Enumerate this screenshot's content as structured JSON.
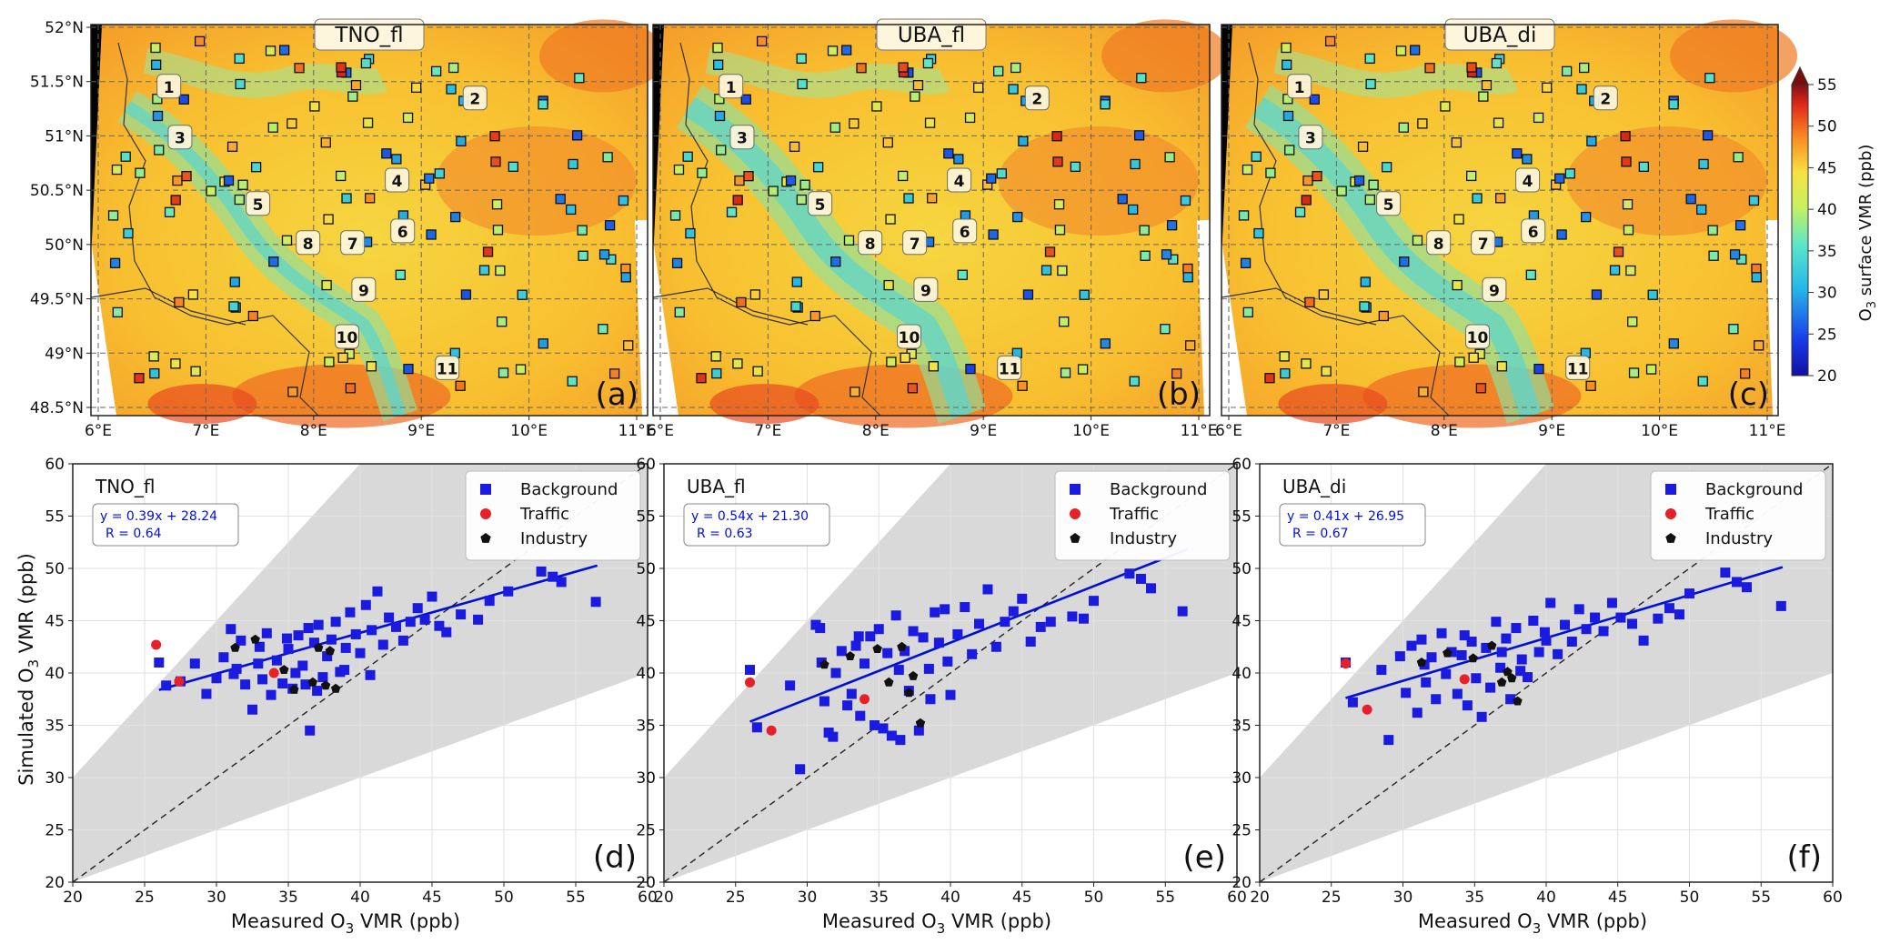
{
  "figure": {
    "map_panels": [
      {
        "title": "TNO_fl",
        "tag": "(a)"
      },
      {
        "title": "UBA_fl",
        "tag": "(b)"
      },
      {
        "title": "UBA_di",
        "tag": "(c)"
      }
    ],
    "site_numbers": [
      "1",
      "2",
      "3",
      "4",
      "5",
      "6",
      "7",
      "8",
      "9",
      "10",
      "11"
    ],
    "colorbar": {
      "label_parts": [
        "O",
        "3",
        " surface VMR (ppb)"
      ],
      "ticks": [
        "20",
        "25",
        "30",
        "35",
        "40",
        "45",
        "50",
        "55"
      ],
      "min": 20,
      "max": 55
    },
    "lon_ticks": [
      "6°E",
      "7°E",
      "8°E",
      "9°E",
      "10°E",
      "11°E"
    ],
    "lat_ticks": [
      "52°N",
      "51.5°N",
      "51°N",
      "50.5°N",
      "50°N",
      "49.5°N",
      "49°N",
      "48.5°N"
    ],
    "scatter_ylabel_parts": [
      "Simulated O",
      "3",
      " VMR (ppb)"
    ],
    "scatter_xlabel_parts": [
      "Measured O",
      "3",
      " VMR (ppb)"
    ],
    "colors": {
      "background": "#1a1ae0",
      "traffic": "#e8202a",
      "industry": "#111111",
      "fit": "#0010d8",
      "shade": "#d9d9d9"
    }
  },
  "chart_data": [
    {
      "type": "scatter",
      "title": "TNO_fl",
      "tag": "(d)",
      "xlim": [
        20,
        60
      ],
      "ylim": [
        20,
        60
      ],
      "xticks": [
        "20",
        "25",
        "30",
        "35",
        "40",
        "45",
        "50",
        "55",
        "60"
      ],
      "yticks": [
        "20",
        "25",
        "30",
        "35",
        "40",
        "45",
        "50",
        "55",
        "60"
      ],
      "xlabel": "Measured O3 VMR (ppb)",
      "ylabel": "Simulated O3 VMR (ppb)",
      "fit_text": [
        "y = 0.39x + 28.24",
        "R = 0.64"
      ],
      "fit": {
        "slope": 0.39,
        "intercept": 28.24,
        "x_range": [
          26,
          56.5
        ]
      },
      "legend": [
        "Background",
        "Traffic",
        "Industry"
      ],
      "series": [
        {
          "name": "Background",
          "points": [
            [
              26.0,
              41.0
            ],
            [
              26.5,
              38.8
            ],
            [
              27.5,
              39.2
            ],
            [
              28.5,
              40.9
            ],
            [
              29.3,
              38.0
            ],
            [
              30.0,
              39.5
            ],
            [
              30.5,
              41.5
            ],
            [
              31.0,
              44.2
            ],
            [
              31.2,
              39.9
            ],
            [
              31.7,
              43.1
            ],
            [
              32.0,
              38.9
            ],
            [
              32.5,
              36.5
            ],
            [
              33.0,
              42.5
            ],
            [
              33.2,
              39.4
            ],
            [
              33.5,
              43.8
            ],
            [
              33.8,
              37.9
            ],
            [
              34.2,
              41.2
            ],
            [
              34.6,
              39.0
            ],
            [
              35.0,
              42.3
            ],
            [
              35.3,
              38.5
            ],
            [
              35.7,
              43.6
            ],
            [
              36.0,
              40.7
            ],
            [
              36.2,
              38.9
            ],
            [
              36.5,
              34.5
            ],
            [
              36.8,
              42.9
            ],
            [
              37.1,
              44.6
            ],
            [
              37.4,
              39.6
            ],
            [
              37.7,
              41.6
            ],
            [
              38.0,
              43.2
            ],
            [
              38.3,
              44.9
            ],
            [
              38.6,
              40.1
            ],
            [
              39.0,
              42.4
            ],
            [
              39.3,
              45.8
            ],
            [
              39.7,
              43.7
            ],
            [
              40.0,
              41.9
            ],
            [
              40.4,
              46.5
            ],
            [
              40.8,
              44.1
            ],
            [
              41.2,
              47.8
            ],
            [
              41.6,
              42.7
            ],
            [
              42.0,
              45.3
            ],
            [
              42.5,
              44.4
            ],
            [
              43.0,
              43.1
            ],
            [
              43.5,
              44.9
            ],
            [
              44.0,
              46.2
            ],
            [
              44.5,
              45.1
            ],
            [
              45.0,
              47.3
            ],
            [
              45.5,
              44.5
            ],
            [
              46.0,
              43.9
            ],
            [
              47.0,
              45.6
            ],
            [
              48.2,
              45.1
            ],
            [
              49.0,
              46.9
            ],
            [
              50.3,
              47.8
            ],
            [
              52.6,
              49.7
            ],
            [
              53.4,
              49.2
            ],
            [
              54.0,
              48.7
            ],
            [
              56.4,
              46.8
            ],
            [
              31.4,
              40.4
            ],
            [
              34.9,
              43.3
            ],
            [
              37.0,
              38.3
            ],
            [
              38.9,
              40.3
            ],
            [
              40.7,
              39.8
            ],
            [
              32.9,
              40.9
            ],
            [
              36.4,
              44.3
            ],
            [
              35.5,
              40.0
            ]
          ]
        },
        {
          "name": "Traffic",
          "points": [
            [
              25.8,
              42.7
            ],
            [
              27.4,
              39.2
            ],
            [
              34.0,
              40.0
            ]
          ]
        },
        {
          "name": "Industry",
          "points": [
            [
              31.3,
              42.4
            ],
            [
              32.7,
              43.2
            ],
            [
              34.7,
              40.3
            ],
            [
              35.4,
              38.4
            ],
            [
              36.7,
              39.1
            ],
            [
              37.1,
              42.4
            ],
            [
              37.6,
              38.8
            ],
            [
              37.9,
              42.1
            ],
            [
              38.3,
              38.5
            ]
          ]
        }
      ]
    },
    {
      "type": "scatter",
      "title": "UBA_fl",
      "tag": "(e)",
      "xlim": [
        20,
        60
      ],
      "ylim": [
        20,
        60
      ],
      "xticks": [
        "20",
        "25",
        "30",
        "35",
        "40",
        "45",
        "50",
        "55",
        "60"
      ],
      "yticks": [
        "20",
        "25",
        "30",
        "35",
        "40",
        "45",
        "50",
        "55",
        "60"
      ],
      "xlabel": "Measured O3 VMR (ppb)",
      "ylabel": "",
      "fit_text": [
        "y = 0.54x + 21.30",
        "R = 0.63"
      ],
      "fit": {
        "slope": 0.54,
        "intercept": 21.3,
        "x_range": [
          26,
          56.5
        ]
      },
      "legend": [
        "Background",
        "Traffic",
        "Industry"
      ],
      "series": [
        {
          "name": "Background",
          "points": [
            [
              26.0,
              40.3
            ],
            [
              26.5,
              34.8
            ],
            [
              28.8,
              38.8
            ],
            [
              29.5,
              30.8
            ],
            [
              30.6,
              44.6
            ],
            [
              30.9,
              44.3
            ],
            [
              31.2,
              37.3
            ],
            [
              31.5,
              34.3
            ],
            [
              31.8,
              33.9
            ],
            [
              32.0,
              40.0
            ],
            [
              32.4,
              42.1
            ],
            [
              32.8,
              36.9
            ],
            [
              33.1,
              38.0
            ],
            [
              33.4,
              42.6
            ],
            [
              33.7,
              35.9
            ],
            [
              34.0,
              40.9
            ],
            [
              34.4,
              43.5
            ],
            [
              34.7,
              35.0
            ],
            [
              35.0,
              44.2
            ],
            [
              35.3,
              34.7
            ],
            [
              35.6,
              41.9
            ],
            [
              35.9,
              34.0
            ],
            [
              36.2,
              45.5
            ],
            [
              36.5,
              33.6
            ],
            [
              36.8,
              42.1
            ],
            [
              37.1,
              38.3
            ],
            [
              37.4,
              44.0
            ],
            [
              37.8,
              34.5
            ],
            [
              38.1,
              43.4
            ],
            [
              38.5,
              40.4
            ],
            [
              38.9,
              45.8
            ],
            [
              39.2,
              42.9
            ],
            [
              39.6,
              46.1
            ],
            [
              40.0,
              37.9
            ],
            [
              40.5,
              43.7
            ],
            [
              41.0,
              46.3
            ],
            [
              41.5,
              41.8
            ],
            [
              42.0,
              44.7
            ],
            [
              42.6,
              48.0
            ],
            [
              43.2,
              42.5
            ],
            [
              43.8,
              44.9
            ],
            [
              44.4,
              45.9
            ],
            [
              45.0,
              47.1
            ],
            [
              45.6,
              43.0
            ],
            [
              46.3,
              44.4
            ],
            [
              47.0,
              44.9
            ],
            [
              48.5,
              45.4
            ],
            [
              49.3,
              45.2
            ],
            [
              50.0,
              46.9
            ],
            [
              52.5,
              49.5
            ],
            [
              53.3,
              49.0
            ],
            [
              54.0,
              48.1
            ],
            [
              56.2,
              45.9
            ],
            [
              31.0,
              41.0
            ],
            [
              33.6,
              43.5
            ],
            [
              36.4,
              40.3
            ],
            [
              38.6,
              37.5
            ],
            [
              39.8,
              41.1
            ]
          ]
        },
        {
          "name": "Traffic",
          "points": [
            [
              26.0,
              39.1
            ],
            [
              27.5,
              34.5
            ],
            [
              34.0,
              37.5
            ]
          ]
        },
        {
          "name": "Industry",
          "points": [
            [
              31.2,
              40.8
            ],
            [
              33.0,
              41.6
            ],
            [
              34.9,
              42.3
            ],
            [
              35.7,
              39.1
            ],
            [
              36.6,
              42.5
            ],
            [
              37.1,
              38.1
            ],
            [
              37.4,
              39.7
            ],
            [
              37.9,
              35.2
            ]
          ]
        }
      ]
    },
    {
      "type": "scatter",
      "title": "UBA_di",
      "tag": "(f)",
      "xlim": [
        20,
        60
      ],
      "ylim": [
        20,
        60
      ],
      "xticks": [
        "20",
        "25",
        "30",
        "35",
        "40",
        "45",
        "50",
        "55",
        "60"
      ],
      "yticks": [
        "20",
        "25",
        "30",
        "35",
        "40",
        "45",
        "50",
        "55",
        "60"
      ],
      "xlabel": "Measured O3 VMR (ppb)",
      "ylabel": "",
      "fit_text": [
        "y = 0.41x + 26.95",
        "R = 0.67"
      ],
      "fit": {
        "slope": 0.41,
        "intercept": 26.95,
        "x_range": [
          26,
          56.5
        ]
      },
      "legend": [
        "Background",
        "Traffic",
        "Industry"
      ],
      "series": [
        {
          "name": "Background",
          "points": [
            [
              26.0,
              41.0
            ],
            [
              26.5,
              37.2
            ],
            [
              28.5,
              40.3
            ],
            [
              29.0,
              33.6
            ],
            [
              29.8,
              41.6
            ],
            [
              30.2,
              38.1
            ],
            [
              30.6,
              42.6
            ],
            [
              31.0,
              36.2
            ],
            [
              31.3,
              43.2
            ],
            [
              31.6,
              39.1
            ],
            [
              32.0,
              41.5
            ],
            [
              32.3,
              37.5
            ],
            [
              32.7,
              43.8
            ],
            [
              33.0,
              39.9
            ],
            [
              33.4,
              42.0
            ],
            [
              33.8,
              38.0
            ],
            [
              34.1,
              41.7
            ],
            [
              34.5,
              36.9
            ],
            [
              34.8,
              43.0
            ],
            [
              35.1,
              39.5
            ],
            [
              35.5,
              35.8
            ],
            [
              35.8,
              42.4
            ],
            [
              36.1,
              38.6
            ],
            [
              36.5,
              44.9
            ],
            [
              36.8,
              40.5
            ],
            [
              37.2,
              43.3
            ],
            [
              37.5,
              37.5
            ],
            [
              37.9,
              44.3
            ],
            [
              38.3,
              41.3
            ],
            [
              38.7,
              39.6
            ],
            [
              39.1,
              45.0
            ],
            [
              39.5,
              42.0
            ],
            [
              39.9,
              43.9
            ],
            [
              40.3,
              46.7
            ],
            [
              40.8,
              41.8
            ],
            [
              41.3,
              44.6
            ],
            [
              41.8,
              43.0
            ],
            [
              42.3,
              46.1
            ],
            [
              42.8,
              44.2
            ],
            [
              43.4,
              45.3
            ],
            [
              44.0,
              44.0
            ],
            [
              44.6,
              46.7
            ],
            [
              45.2,
              45.3
            ],
            [
              46.0,
              44.7
            ],
            [
              46.8,
              43.1
            ],
            [
              47.8,
              45.2
            ],
            [
              48.6,
              46.2
            ],
            [
              49.3,
              45.6
            ],
            [
              50.0,
              47.6
            ],
            [
              52.5,
              49.6
            ],
            [
              53.3,
              48.7
            ],
            [
              54.0,
              48.2
            ],
            [
              56.4,
              46.4
            ],
            [
              31.5,
              40.8
            ],
            [
              34.3,
              43.6
            ],
            [
              36.9,
              42.0
            ],
            [
              38.2,
              40.2
            ],
            [
              40.0,
              43.1
            ]
          ]
        },
        {
          "name": "Traffic",
          "points": [
            [
              26.0,
              40.9
            ],
            [
              27.5,
              36.5
            ],
            [
              34.3,
              39.4
            ]
          ]
        },
        {
          "name": "Industry",
          "points": [
            [
              31.3,
              41.0
            ],
            [
              33.1,
              41.9
            ],
            [
              34.9,
              41.4
            ],
            [
              36.2,
              42.6
            ],
            [
              36.9,
              39.1
            ],
            [
              37.3,
              40.1
            ],
            [
              37.6,
              39.5
            ],
            [
              38.0,
              37.3
            ]
          ]
        }
      ]
    }
  ]
}
